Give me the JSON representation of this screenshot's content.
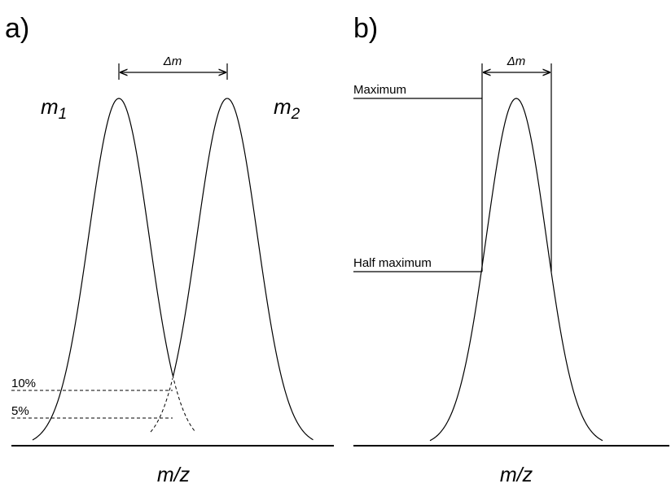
{
  "panel_a": {
    "label": "a)",
    "peak1": {
      "symbol": "m",
      "subscript": "1"
    },
    "peak2": {
      "symbol": "m",
      "subscript": "2"
    },
    "delta": "Δm",
    "level_10": "10%",
    "level_5": "5%",
    "axis": "m/z"
  },
  "panel_b": {
    "label": "b)",
    "delta": "Δm",
    "maximum": "Maximum",
    "half_maximum": "Half maximum",
    "axis": "m/z"
  }
}
